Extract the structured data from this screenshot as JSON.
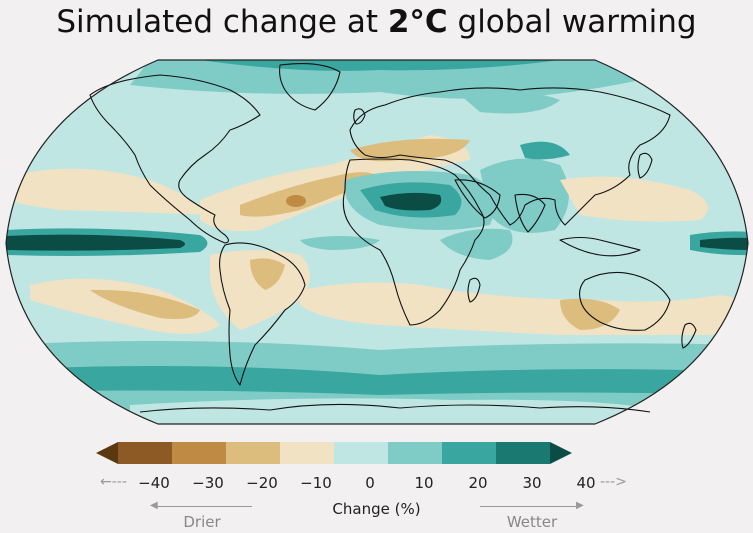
{
  "title": {
    "prefix": "Simulated change at ",
    "emphasis": "2°C",
    "suffix": " global warming"
  },
  "legend": {
    "ticks": [
      "−40",
      "−30",
      "−20",
      "−10",
      "0",
      "10",
      "20",
      "30",
      "40"
    ],
    "label": "Change (%)",
    "drier": "Drier",
    "wetter": "Wetter",
    "left_arrow": "←---",
    "right_arrow": "--->",
    "colors": [
      "#5a3810",
      "#8d5a26",
      "#be8a44",
      "#ddbd7e",
      "#f0e2c2",
      "#c0e6e4",
      "#7fcbc6",
      "#3aa6a0",
      "#1a7a72",
      "#0b4d45"
    ]
  },
  "map": {
    "projection": "Robinson",
    "ocean_base_color": "#c0e6e4"
  }
}
